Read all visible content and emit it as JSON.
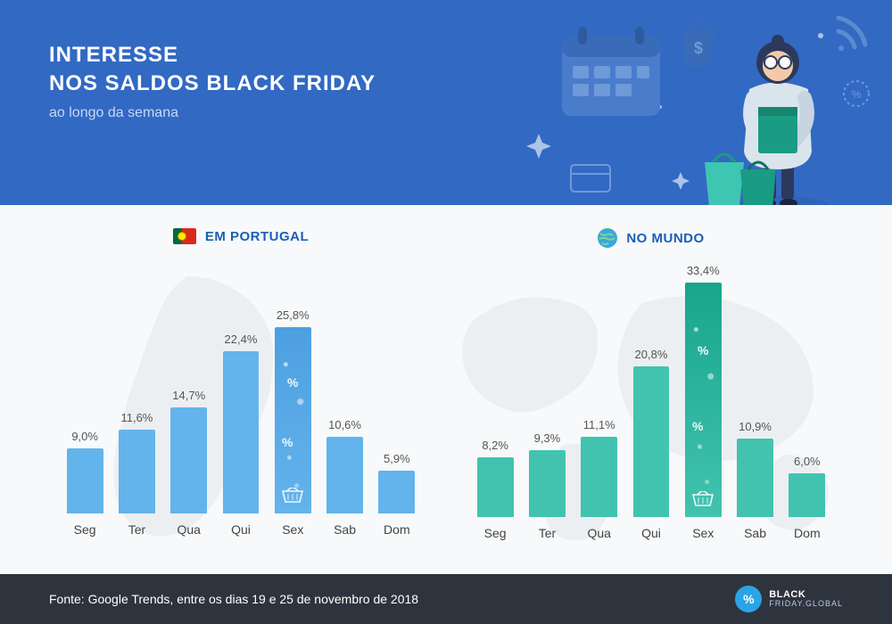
{
  "colors": {
    "header_bg": "#3269c3",
    "footer_bg": "#2e343d",
    "content_bg": "#f7f9fa",
    "portugal_bar": "#63b4ec",
    "portugal_highlight": "#4e9fe0",
    "world_bar": "#42c3b0",
    "world_highlight": "#18a58c",
    "panel_title_pt": "#1b5fb3",
    "panel_title_world": "#1b5fb3",
    "globe_bg": "#39a9db",
    "logo_badge": "#2aa4e6",
    "map_silhouette": "#eceff2"
  },
  "header": {
    "title_line1": "INTERESSE",
    "title_line2": "NOS SALDOS BLACK FRIDAY",
    "subtitle": "ao longo da semana"
  },
  "charts": {
    "max_value": 35,
    "categories": [
      "Seg",
      "Ter",
      "Qua",
      "Qui",
      "Sex",
      "Sab",
      "Dom"
    ],
    "highlight_index": 4,
    "portugal": {
      "title": "EM PORTUGAL",
      "values": [
        9.0,
        11.6,
        14.7,
        22.4,
        25.8,
        10.6,
        5.9
      ],
      "labels": [
        "9,0%",
        "11,6%",
        "14,7%",
        "22,4%",
        "25,8%",
        "10,6%",
        "5,9%"
      ]
    },
    "world": {
      "title": "NO MUNDO",
      "values": [
        8.2,
        9.3,
        11.1,
        20.8,
        33.4,
        10.9,
        6.0
      ],
      "labels": [
        "8,2%",
        "9,3%",
        "11,1%",
        "20,8%",
        "33,4%",
        "10,9%",
        "6,0%"
      ]
    }
  },
  "footer": {
    "source": "Fonte: Google Trends, entre os dias 19 e 25 de novembro de 2018",
    "logo_line1": "BLACK",
    "logo_line2": "FRIDAY.GLOBAL"
  }
}
